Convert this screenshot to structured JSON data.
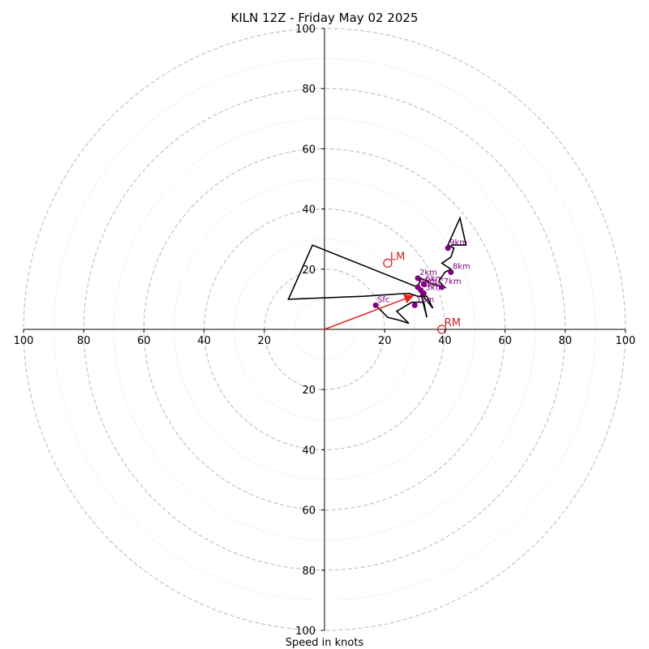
{
  "chart_data": {
    "type": "hodograph",
    "title": "KILN 12Z - Friday May 02 2025",
    "xlabel": "Speed in knots",
    "xlim": [
      -100,
      100
    ],
    "ylim": [
      -100,
      100
    ],
    "rings_major": [
      20,
      40,
      60,
      80,
      100
    ],
    "rings_minor": [
      10,
      30,
      50,
      70,
      90
    ],
    "tick_values": [
      20,
      40,
      60,
      80,
      100
    ],
    "x_tick_labels": [
      "100",
      "80",
      "60",
      "40",
      "20",
      "20",
      "40",
      "60",
      "80",
      "100"
    ],
    "y_tick_labels": [
      "100",
      "80",
      "60",
      "40",
      "20",
      "20",
      "40",
      "60",
      "80",
      "100"
    ],
    "hodograph_trace": {
      "color": "#000000",
      "points": [
        [
          17,
          8
        ],
        [
          21,
          4
        ],
        [
          25,
          3
        ],
        [
          28,
          2
        ],
        [
          24,
          6
        ],
        [
          29,
          9
        ],
        [
          33,
          9
        ],
        [
          34,
          4
        ],
        [
          32,
          12
        ],
        [
          36,
          7
        ],
        [
          34,
          11
        ],
        [
          31,
          11
        ],
        [
          28,
          12
        ],
        [
          13,
          11
        ],
        [
          -12,
          10
        ],
        [
          -4,
          28
        ],
        [
          31,
          14
        ],
        [
          32,
          17
        ],
        [
          36,
          15
        ],
        [
          40,
          14
        ],
        [
          38,
          16
        ],
        [
          40,
          19
        ],
        [
          42,
          20
        ],
        [
          39,
          22
        ],
        [
          42,
          24
        ],
        [
          43,
          27
        ],
        [
          41,
          28
        ],
        [
          45,
          37
        ],
        [
          47,
          28
        ],
        [
          42,
          28
        ]
      ]
    },
    "height_markers": {
      "color": "#800080",
      "points": [
        {
          "label": "Sfc",
          "x": 17,
          "y": 8
        },
        {
          "label": "1km",
          "x": 30,
          "y": 8
        },
        {
          "label": "2km",
          "x": 31,
          "y": 17
        },
        {
          "label": "3km",
          "x": 33,
          "y": 12
        },
        {
          "label": "4km",
          "x": 31,
          "y": 14
        },
        {
          "label": "5km",
          "x": 32,
          "y": 13
        },
        {
          "label": "6km",
          "x": 33,
          "y": 15
        },
        {
          "label": "7km",
          "x": 39,
          "y": 14
        },
        {
          "label": "8km",
          "x": 42,
          "y": 19
        },
        {
          "label": "9km",
          "x": 41,
          "y": 27
        }
      ]
    },
    "storm_motion": {
      "color": "#cc2222",
      "vector": [
        29,
        11
      ],
      "markers": [
        {
          "label": "LM",
          "x": 21,
          "y": 22
        },
        {
          "label": "RM",
          "x": 39,
          "y": 0
        }
      ]
    }
  }
}
